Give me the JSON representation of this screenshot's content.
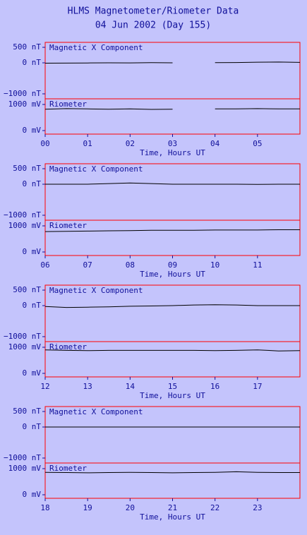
{
  "title": "HLMS Magnetometer/Riometer Data",
  "subtitle": "04 Jun 2002 (Day 155)",
  "chart_data": [
    {
      "type": "line",
      "label": "Magnetic X Component",
      "x": [
        0,
        0.5,
        1,
        1.5,
        2,
        2.5,
        3,
        3.5,
        4,
        4.5,
        5,
        5.5,
        6
      ],
      "values": [
        -10,
        -8,
        -5,
        0,
        -2,
        5,
        0,
        null,
        5,
        10,
        20,
        25,
        15
      ],
      "color": "#000000",
      "xlim": [
        0,
        6
      ],
      "ylim": [
        -1160,
        660
      ],
      "yticks": [
        {
          "value": 500,
          "label": "500 nT"
        },
        {
          "value": 0,
          "label": "0 nT"
        },
        {
          "value": -1000,
          "label": "−1000 nT"
        }
      ]
    },
    {
      "type": "line",
      "label": "Riometer",
      "x": [
        0,
        0.5,
        1,
        1.5,
        2,
        2.5,
        3,
        3.5,
        4,
        4.5,
        5,
        5.5,
        6
      ],
      "values": [
        820,
        840,
        830,
        820,
        830,
        810,
        820,
        null,
        830,
        830,
        840,
        830,
        830
      ],
      "color": "#000000",
      "xlim": [
        0,
        6
      ],
      "ylim": [
        -135,
        1216
      ],
      "yticks": [
        {
          "value": 1000,
          "label": "1000 mV"
        },
        {
          "value": 0,
          "label": "0 mV"
        }
      ],
      "xlabel": "Time, Hours UT",
      "xticks": [
        {
          "value": 0,
          "label": "00"
        },
        {
          "value": 1,
          "label": "01"
        },
        {
          "value": 2,
          "label": "02"
        },
        {
          "value": 3,
          "label": "03"
        },
        {
          "value": 4,
          "label": "04"
        },
        {
          "value": 5,
          "label": "05"
        }
      ]
    },
    {
      "type": "line",
      "label": "Magnetic X Component",
      "x": [
        6,
        6.5,
        7,
        7.5,
        8,
        8.5,
        9,
        9.5,
        10,
        10.5,
        11,
        11.5,
        12
      ],
      "values": [
        0,
        0,
        0,
        20,
        40,
        20,
        0,
        0,
        0,
        0,
        -5,
        0,
        0
      ],
      "color": "#000000",
      "xlim": [
        6,
        12
      ],
      "ylim": [
        -1160,
        660
      ],
      "yticks": [
        {
          "value": 500,
          "label": "500 nT"
        },
        {
          "value": 0,
          "label": "0 nT"
        },
        {
          "value": -1000,
          "label": "−1000 nT"
        }
      ]
    },
    {
      "type": "line",
      "label": "Riometer",
      "x": [
        6,
        6.5,
        7,
        7.5,
        8,
        8.5,
        9,
        9.5,
        10,
        10.5,
        11,
        11.5,
        12
      ],
      "values": [
        780,
        790,
        800,
        810,
        820,
        830,
        830,
        830,
        840,
        840,
        840,
        850,
        850
      ],
      "color": "#000000",
      "xlim": [
        6,
        12
      ],
      "ylim": [
        -135,
        1216
      ],
      "yticks": [
        {
          "value": 1000,
          "label": "1000 mV"
        },
        {
          "value": 0,
          "label": "0 mV"
        }
      ],
      "xlabel": "Time, Hours UT",
      "xticks": [
        {
          "value": 6,
          "label": "06"
        },
        {
          "value": 7,
          "label": "07"
        },
        {
          "value": 8,
          "label": "08"
        },
        {
          "value": 9,
          "label": "09"
        },
        10,
        11
      ]
    },
    {
      "type": "line",
      "label": "Magnetic X Component",
      "x": [
        12,
        12.5,
        13,
        13.5,
        14,
        14.5,
        15,
        15.5,
        16,
        16.5,
        17,
        17.5,
        18
      ],
      "values": [
        -30,
        -60,
        -50,
        -40,
        -20,
        -10,
        0,
        20,
        30,
        20,
        0,
        0,
        0
      ],
      "color": "#000000",
      "xlim": [
        12,
        18
      ],
      "ylim": [
        -1160,
        660
      ],
      "yticks": [
        {
          "value": 500,
          "label": "500 nT"
        },
        {
          "value": 0,
          "label": "0 nT"
        },
        {
          "value": -1000,
          "label": "−1000 nT"
        }
      ]
    },
    {
      "type": "line",
      "label": "Riometer",
      "x": [
        12,
        12.5,
        13,
        13.5,
        14,
        14.5,
        15,
        15.5,
        16,
        16.5,
        17,
        17.5,
        18
      ],
      "values": [
        900,
        880,
        870,
        880,
        880,
        880,
        880,
        880,
        870,
        880,
        900,
        860,
        870
      ],
      "color": "#000000",
      "xlim": [
        12,
        18
      ],
      "ylim": [
        -135,
        1216
      ],
      "yticks": [
        {
          "value": 1000,
          "label": "1000 mV"
        },
        {
          "value": 0,
          "label": "0 mV"
        }
      ],
      "xlabel": "Time, Hours UT",
      "xticks": [
        12,
        13,
        14,
        15,
        16,
        17
      ]
    },
    {
      "type": "line",
      "label": "Magnetic X Component",
      "x": [
        18,
        18.5,
        19,
        19.5,
        20,
        20.5,
        21,
        21.5,
        22,
        22.5,
        23,
        23.5,
        24
      ],
      "values": [
        0,
        0,
        0,
        0,
        0,
        0,
        0,
        0,
        0,
        0,
        0,
        0,
        0
      ],
      "color": "#000000",
      "xlim": [
        18,
        24
      ],
      "ylim": [
        -1160,
        660
      ],
      "yticks": [
        {
          "value": 500,
          "label": "500 nT"
        },
        {
          "value": 0,
          "label": "0 nT"
        },
        {
          "value": -1000,
          "label": "−1000 nT"
        }
      ]
    },
    {
      "type": "line",
      "label": "Riometer",
      "x": [
        18,
        18.5,
        19,
        19.5,
        20,
        20.5,
        21,
        21.5,
        22,
        22.5,
        23,
        23.5,
        24
      ],
      "values": [
        860,
        850,
        840,
        850,
        860,
        850,
        840,
        850,
        860,
        880,
        860,
        850,
        850
      ],
      "color": "#000000",
      "xlim": [
        18,
        24
      ],
      "ylim": [
        -135,
        1216
      ],
      "yticks": [
        {
          "value": 1000,
          "label": "1000 mV"
        },
        {
          "value": 0,
          "label": "0 mV"
        }
      ],
      "xlabel": "Time, Hours UT",
      "xticks": [
        18,
        19,
        20,
        21,
        22,
        23
      ]
    }
  ]
}
